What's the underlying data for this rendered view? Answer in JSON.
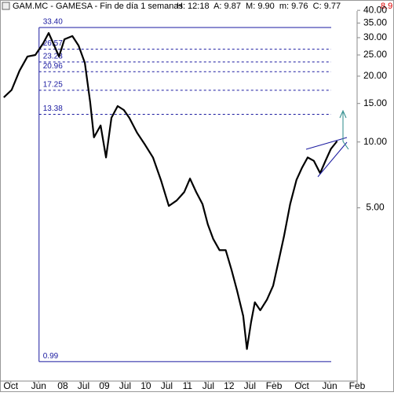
{
  "chart_data": {
    "type": "line",
    "title": "GAM.MC - GAMESA - Fin de día 1 semanas",
    "subtitle": "H: 12:18  A: 9.87  M: 9.90  m: 9.76  C: 9.77",
    "annotation": "8.9",
    "color": "#000000",
    "log_scale": true,
    "ylim": [
      0.82,
      44.6
    ],
    "yticks": [
      {
        "value": 5,
        "label": "5.00"
      },
      {
        "value": 10,
        "label": "10.00"
      },
      {
        "value": 15,
        "label": "15.00"
      },
      {
        "value": 20,
        "label": "20.00"
      },
      {
        "value": 25,
        "label": "25.00"
      },
      {
        "value": 30,
        "label": "30.00"
      },
      {
        "value": 35,
        "label": "35.00"
      },
      {
        "value": 40,
        "label": "40.00"
      }
    ],
    "xlim": [
      2006.49,
      2015.08
    ],
    "xticks": [
      {
        "value": 2006.75,
        "label": "Oct"
      },
      {
        "value": 2007.42,
        "label": "Jun"
      },
      {
        "value": 2008,
        "label": "08"
      },
      {
        "value": 2008.5,
        "label": "Jul"
      },
      {
        "value": 2009,
        "label": "09"
      },
      {
        "value": 2009.5,
        "label": "Jul"
      },
      {
        "value": 2010,
        "label": "10"
      },
      {
        "value": 2010.5,
        "label": "Jul"
      },
      {
        "value": 2011,
        "label": "11"
      },
      {
        "value": 2011.5,
        "label": "Jul"
      },
      {
        "value": 2012,
        "label": "12"
      },
      {
        "value": 2012.5,
        "label": "Jul"
      },
      {
        "value": 2013.08,
        "label": "Feb"
      },
      {
        "value": 2013.75,
        "label": "Oct"
      },
      {
        "value": 2014.42,
        "label": "Jun"
      },
      {
        "value": 2015.08,
        "label": "Feb"
      }
    ],
    "level_color": "#1a1aa0",
    "levels": [
      {
        "value": 33.4,
        "label": "33.40"
      },
      {
        "value": 26.57,
        "label": "26.57"
      },
      {
        "value": 23.23,
        "label": "23.23"
      },
      {
        "value": 20.96,
        "label": "20.96"
      },
      {
        "value": 17.25,
        "label": "17.25"
      },
      {
        "value": 13.38,
        "label": "13.38"
      },
      {
        "value": 0.99,
        "label": "0.99"
      }
    ],
    "x": [
      2006.58,
      2006.77,
      2006.96,
      2007.15,
      2007.34,
      2007.53,
      2007.66,
      2007.77,
      2007.91,
      2008.04,
      2008.23,
      2008.38,
      2008.53,
      2008.66,
      2008.75,
      2008.91,
      2009.04,
      2009.17,
      2009.32,
      2009.47,
      2009.6,
      2009.79,
      2009.98,
      2010.17,
      2010.36,
      2010.55,
      2010.74,
      2010.92,
      2011.06,
      2011.21,
      2011.36,
      2011.49,
      2011.62,
      2011.77,
      2011.92,
      2012.06,
      2012.19,
      2012.34,
      2012.43,
      2012.53,
      2012.62,
      2012.75,
      2012.91,
      2013.06,
      2013.2,
      2013.32,
      2013.47,
      2013.62,
      2013.75,
      2013.89,
      2014.04,
      2014.19,
      2014.32,
      2014.45,
      2014.6
    ],
    "values": [
      16.0,
      17.3,
      21.2,
      24.6,
      25.0,
      28.3,
      31.5,
      28.3,
      24.6,
      29.5,
      30.5,
      27.6,
      23.0,
      15.2,
      10.5,
      11.9,
      8.5,
      12.9,
      14.6,
      14.0,
      12.9,
      11.0,
      9.7,
      8.5,
      6.7,
      5.1,
      5.4,
      5.9,
      6.8,
      5.9,
      5.2,
      4.2,
      3.6,
      3.2,
      3.2,
      2.6,
      2.1,
      1.6,
      1.13,
      1.5,
      1.85,
      1.7,
      1.9,
      2.2,
      2.9,
      3.7,
      5.2,
      6.7,
      7.6,
      8.5,
      8.2,
      7.2,
      8.2,
      9.3,
      10.1
    ]
  }
}
